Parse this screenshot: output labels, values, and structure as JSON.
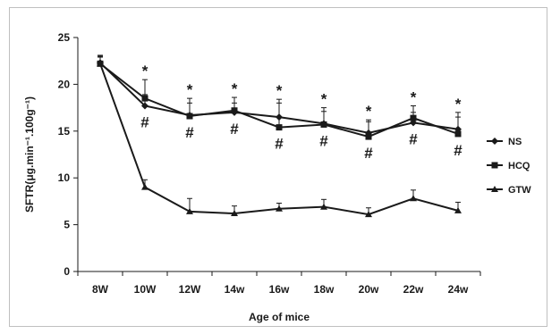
{
  "chart_data": {
    "type": "line",
    "xlabel": "Age of mice",
    "ylabel": "SFTR(μg.min⁻¹.100g⁻¹)",
    "ylim": [
      0,
      25
    ],
    "yticks": [
      0,
      5,
      10,
      15,
      20,
      25
    ],
    "categories": [
      "8W",
      "10W",
      "12W",
      "14w",
      "16w",
      "18w",
      "20w",
      "22w",
      "24w"
    ],
    "legend_position": "right",
    "grid": false,
    "series": [
      {
        "name": "NS",
        "marker": "diamond",
        "values": [
          22.3,
          17.7,
          16.7,
          17.0,
          16.5,
          15.8,
          14.8,
          15.9,
          15.2
        ],
        "errors": [
          0.8,
          1.2,
          1.3,
          1.0,
          1.5,
          1.3,
          1.2,
          1.1,
          1.3
        ]
      },
      {
        "name": "HCQ",
        "marker": "square",
        "values": [
          22.2,
          18.5,
          16.6,
          17.2,
          15.4,
          15.7,
          14.4,
          16.4,
          14.7
        ],
        "errors": [
          0.8,
          2.0,
          1.9,
          1.4,
          3.0,
          1.8,
          1.8,
          1.3,
          2.3
        ]
      },
      {
        "name": "GTW",
        "marker": "triangle",
        "values": [
          22.2,
          9.0,
          6.4,
          6.2,
          6.7,
          6.9,
          6.1,
          7.8,
          6.5
        ],
        "errors": [
          0.7,
          0.8,
          1.4,
          0.8,
          0.6,
          0.8,
          0.7,
          0.9,
          0.9
        ]
      }
    ],
    "annotations": {
      "star": {
        "label": "*",
        "categories": [
          "10W",
          "12W",
          "14w",
          "16w",
          "18w",
          "20w",
          "22w",
          "24w"
        ]
      },
      "hash": {
        "label": "#",
        "categories": [
          "10W",
          "12W",
          "14w",
          "16w",
          "18w",
          "20w",
          "22w",
          "24w"
        ]
      }
    }
  }
}
